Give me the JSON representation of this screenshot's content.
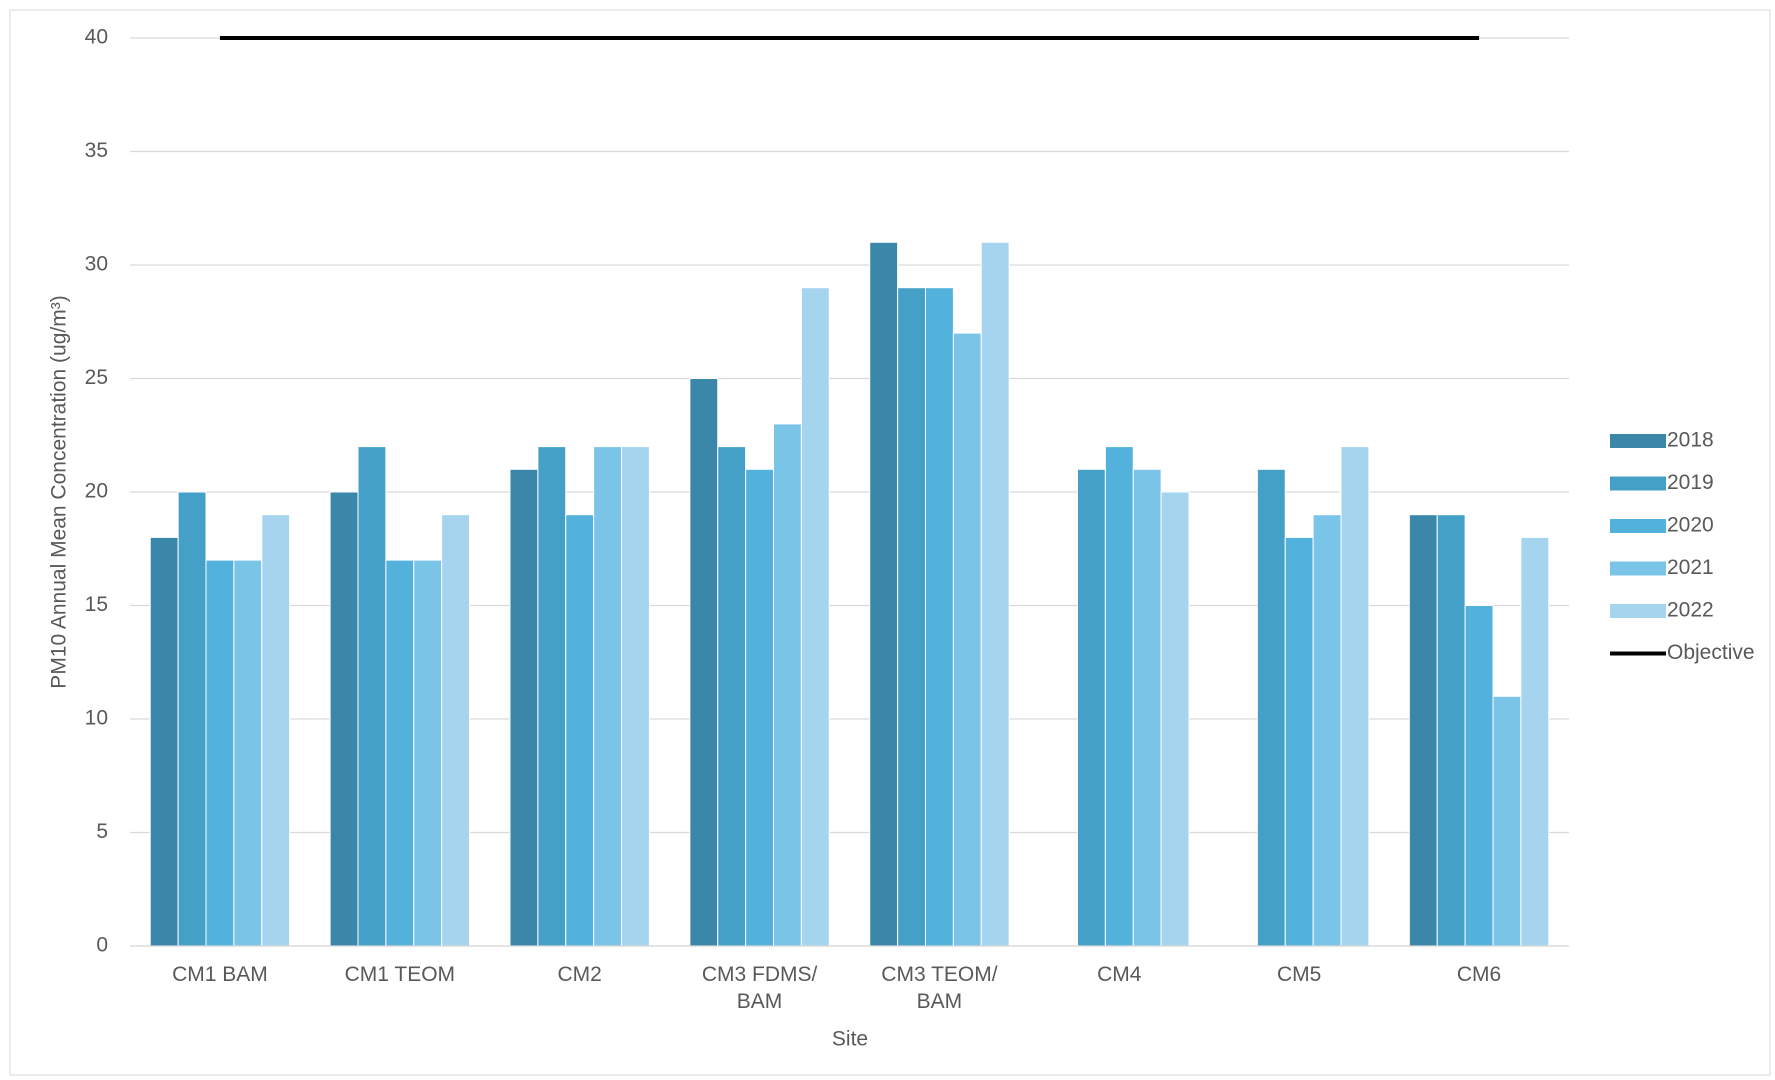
{
  "chart_data": {
    "type": "bar",
    "y_axis_label": "PM10 Annual Mean Concentration (ug/m³)",
    "x_axis_label": "Site",
    "categories": [
      "CM1 BAM",
      "CM1 TEOM",
      "CM2",
      "CM3 FDMS/ BAM",
      "CM3 TEOM/ BAM",
      "CM4",
      "CM5",
      "CM6"
    ],
    "series": [
      {
        "name": "2018",
        "color": "#3a87aa",
        "values": [
          18,
          20,
          21,
          25,
          31,
          null,
          null,
          19
        ]
      },
      {
        "name": "2019",
        "color": "#45a0c8",
        "values": [
          20,
          22,
          22,
          22,
          29,
          21,
          21,
          19
        ]
      },
      {
        "name": "2020",
        "color": "#52b2dc",
        "values": [
          17,
          17,
          19,
          21,
          29,
          22,
          18,
          15
        ]
      },
      {
        "name": "2021",
        "color": "#7ac4e8",
        "values": [
          17,
          17,
          22,
          23,
          27,
          21,
          19,
          11
        ]
      },
      {
        "name": "2022",
        "color": "#a5d4ee",
        "values": [
          19,
          19,
          22,
          29,
          31,
          20,
          22,
          18
        ]
      },
      {
        "name": "Objective",
        "type": "line",
        "color": "#000000",
        "values": [
          40,
          40,
          40,
          40,
          40,
          40,
          40,
          40
        ]
      }
    ],
    "ylim": [
      0,
      40
    ],
    "yticks": [
      0,
      5,
      10,
      15,
      20,
      25,
      30,
      35,
      40
    ],
    "grid": true,
    "legend": "right"
  }
}
